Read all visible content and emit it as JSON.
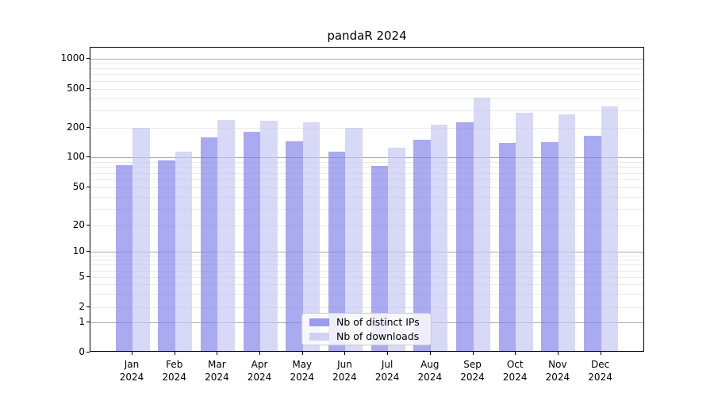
{
  "title": "pandaR 2024",
  "legend": {
    "items": [
      {
        "label": "Nb of distinct IPs"
      },
      {
        "label": "Nb of downloads"
      }
    ]
  },
  "chart_data": {
    "type": "bar",
    "title": "pandaR 2024",
    "categories": [
      "Jan",
      "Feb",
      "Mar",
      "Apr",
      "May",
      "Jun",
      "Jul",
      "Aug",
      "Sep",
      "Oct",
      "Nov",
      "Dec"
    ],
    "category_year": "2024",
    "x_tick_labels": [
      "Jan\n2024",
      "Feb\n2024",
      "Mar\n2024",
      "Apr\n2024",
      "May\n2024",
      "Jun\n2024",
      "Jul\n2024",
      "Aug\n2024",
      "Sep\n2024",
      "Oct\n2024",
      "Nov\n2024",
      "Dec\n2024"
    ],
    "series": [
      {
        "name": "Nb of distinct IPs",
        "color": "#7c7ce8",
        "values": [
          80,
          90,
          155,
          175,
          140,
          110,
          79,
          145,
          220,
          135,
          137,
          160
        ]
      },
      {
        "name": "Nb of downloads",
        "color": "#c3c3f3",
        "values": [
          195,
          110,
          235,
          230,
          220,
          195,
          120,
          210,
          390,
          275,
          265,
          320
        ]
      }
    ],
    "xlabel": "",
    "ylabel": "",
    "y_scale": "symlog",
    "y_ticks": [
      1000,
      500,
      200,
      100,
      50,
      20,
      10,
      5,
      2,
      1,
      0
    ],
    "ylim": [
      0,
      1200
    ],
    "grid": true,
    "legend_position": "lower center",
    "grid_major_color": "#ababab",
    "grid_minor_color": "#e9e9e9"
  }
}
